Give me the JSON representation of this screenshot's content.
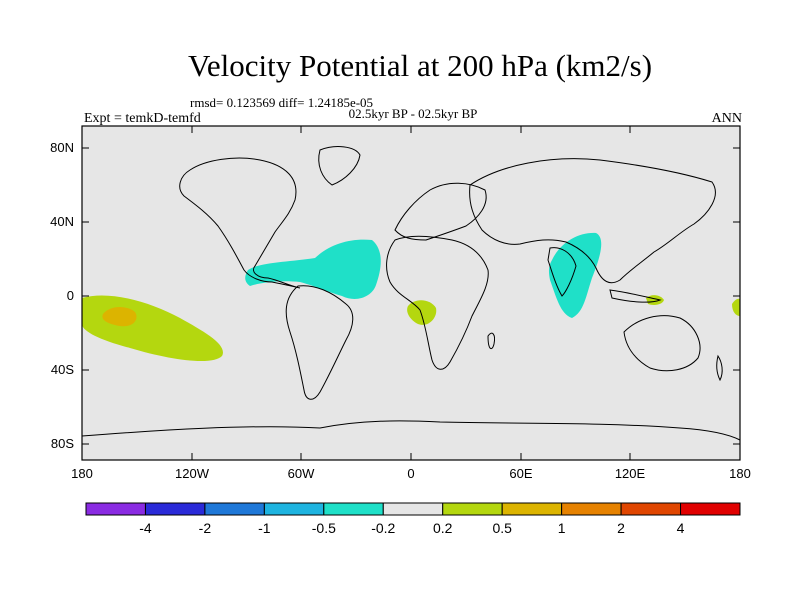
{
  "title": "Velocity Potential at 200 hPa (km2/s)",
  "stats": "rmsd= 0.123569 diff= 1.24185e-05",
  "period": "02.5kyr BP - 02.5kyr BP",
  "expt": "Expt = temkD-temfd",
  "season": "ANN",
  "y_ticks": [
    "80N",
    "40N",
    "0",
    "40S",
    "80S"
  ],
  "x_ticks": [
    "180",
    "120W",
    "60W",
    "0",
    "60E",
    "120E",
    "180"
  ],
  "colorbar": {
    "colors": [
      "#8a2be2",
      "#2a2ad8",
      "#1f78d8",
      "#1eb4e0",
      "#1fe0c8",
      "#e6e6e6",
      "#b4d70f",
      "#dcb400",
      "#e68200",
      "#e04600",
      "#e00000"
    ],
    "labels": [
      "-4",
      "-2",
      "-1",
      "-0.5",
      "-0.2",
      "0.2",
      "0.5",
      "1",
      "2",
      "4"
    ]
  },
  "colors": {
    "ocean_bg": "#e6e6e6",
    "negative_anomaly": "#1fe0c8",
    "positive_anomaly": "#b4d70f",
    "strong_positive": "#dcb400"
  }
}
